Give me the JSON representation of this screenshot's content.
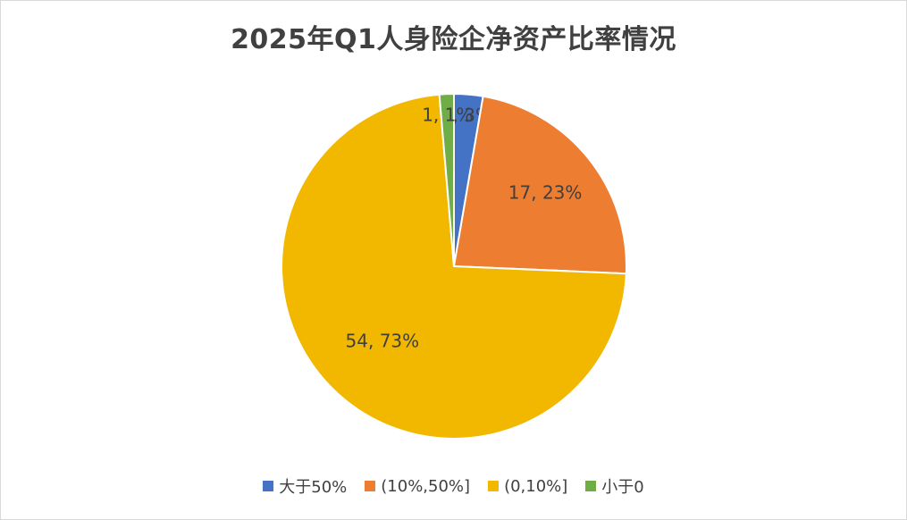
{
  "chart_data": {
    "type": "pie",
    "title": "2025年Q1人身险企净资产比率情况",
    "categories": [
      "大于50%",
      "(10%,50%]",
      "(0,10%]",
      "小于0"
    ],
    "values": [
      2,
      17,
      54,
      1
    ],
    "percent_labels": [
      "3%",
      "23%",
      "73%",
      "1%"
    ],
    "data_labels": [
      "2, 3%",
      "17, 23%",
      "54, 73%",
      "1, 1%"
    ],
    "colors": [
      "#4472c4",
      "#ed7d31",
      "#f2b800",
      "#70ad47"
    ],
    "legend_position": "bottom",
    "start_angle_deg": 0,
    "direction": "clockwise"
  }
}
